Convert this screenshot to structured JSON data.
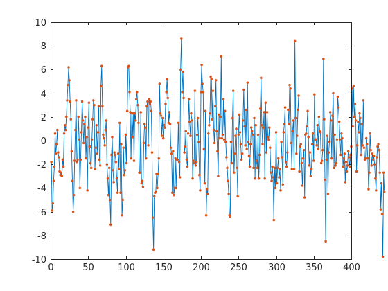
{
  "chart_data": {
    "type": "line",
    "title": "",
    "xlabel": "",
    "ylabel": "",
    "xlim": [
      0,
      400
    ],
    "ylim": [
      -10,
      10
    ],
    "xticks": [
      0,
      50,
      100,
      150,
      200,
      250,
      300,
      350,
      400
    ],
    "yticks": [
      -10,
      -8,
      -6,
      -4,
      -2,
      0,
      2,
      4,
      6,
      8,
      10
    ],
    "grid": false,
    "legend": "none",
    "line_color": "#0072BD",
    "marker_color": "#D95319",
    "marker": "dot",
    "series": [
      {
        "values": [
          -1.8,
          -5.9,
          -5.3,
          -3.4,
          -2.2,
          0.6,
          -1.1,
          -0.3,
          0.9,
          -1.0,
          -1.4,
          -2.6,
          -2.9,
          -2.7,
          -3.0,
          -1.6,
          -2.2,
          0.6,
          1.3,
          0.9,
          2.0,
          3.4,
          4.7,
          6.2,
          5.1,
          3.3,
          1.8,
          -0.9,
          -3.4,
          -6.0,
          -4.6,
          -1.7,
          0.9,
          3.4,
          -1.8,
          -1.6,
          2.0,
          0.1,
          -4.0,
          -1.6,
          0.7,
          3.3,
          1.7,
          -0.2,
          1.4,
          2.0,
          -1.5,
          0.3,
          -4.2,
          1.1,
          3.2,
          -0.5,
          -1.9,
          -2.3,
          0.1,
          1.8,
          3.4,
          3.0,
          -2.4,
          -0.6,
          1.3,
          -1.1,
          0.7,
          2.9,
          -1.6,
          -2.1,
          4.6,
          6.3,
          2.9,
          0.5,
          0.2,
          -0.4,
          0.9,
          1.7,
          -2.0,
          -3.2,
          -4.6,
          -2.3,
          -5.0,
          -7.1,
          -1.2,
          0.3,
          -2.5,
          -3.5,
          -1.0,
          -1.2,
          -1.8,
          -3.2,
          -4.4,
          -1.1,
          -2.4,
          1.5,
          -4.4,
          -0.3,
          -6.3,
          -5.0,
          -0.6,
          -2.9,
          -2.5,
          0.5,
          -1.9,
          2.5,
          6.2,
          6.3,
          4.1,
          2.4,
          -1.5,
          2.3,
          0.3,
          2.3,
          -1.7,
          2.3,
          1.7,
          3.5,
          4.1,
          3.0,
          1.5,
          -2.7,
          -2.7,
          2.4,
          -3.6,
          -3.4,
          -3.9,
          -0.2,
          1.4,
          1.1,
          -1.5,
          2.9,
          3.3,
          -0.4,
          3.5,
          3.1,
          3.3,
          2.5,
          -1.0,
          -6.5,
          -9.2,
          -4.7,
          -4.4,
          -4.3,
          -2.8,
          -4.0,
          -2.8,
          -1.5,
          4.8,
          2.3,
          2.1,
          0.4,
          1.9,
          0.2,
          1.3,
          1.1,
          3.1,
          4.1,
          5.2,
          3.6,
          1.5,
          2.4,
          1.4,
          -0.6,
          -1.1,
          -4.4,
          -0.9,
          -4.6,
          -4.0,
          -1.5,
          -4.0,
          -1.6,
          -1.6,
          1.5,
          -1.8,
          -3.1,
          6.0,
          8.6,
          4.1,
          5.8,
          3.6,
          -1.0,
          -0.5,
          0.8,
          -1.6,
          -2.2,
          0.6,
          3.5,
          1.6,
          0.4,
          2.3,
          1.7,
          -3.2,
          -1.7,
          -1.9,
          4.2,
          -2.1,
          -1.8,
          0.5,
          1.9,
          -0.1,
          -2.9,
          -4.2,
          4.1,
          6.4,
          4.8,
          4.1,
          -0.7,
          -3.6,
          2.5,
          -6.3,
          -4.1,
          -4.5,
          0.6,
          1.3,
          2.3,
          5.4,
          5.2,
          1.8,
          4.2,
          0.9,
          -0.2,
          2.9,
          5.1,
          0.8,
          -0.9,
          -3.0,
          2.2,
          0.2,
          2.0,
          7.1,
          0.2,
          0.5,
          3.5,
          0.1,
          2.5,
          -0.1,
          -1.4,
          -2.3,
          -3.4,
          -4.5,
          -6.3,
          -6.4,
          -0.1,
          -1.9,
          1.9,
          4.2,
          -2.7,
          -1.1,
          0.4,
          1.0,
          -2.3,
          -4.7,
          0.5,
          2.2,
          0.7,
          -0.3,
          -1.6,
          -1.1,
          1.7,
          4.3,
          1.2,
          -0.4,
          2.6,
          -0.7,
          4.9,
          -0.1,
          -1.3,
          -2.2,
          -0.3,
          1.1,
          0.8,
          0.5,
          -2.3,
          1.9,
          -3.2,
          1.3,
          -1.7,
          -2.3,
          0.5,
          -3.2,
          -1.2,
          2.7,
          5.3,
          1.3,
          -0.3,
          1.1,
          2.4,
          -3.2,
          3.2,
          -1.0,
          2.4,
          0.3,
          0.1,
          1.1,
          -0.6,
          -2.7,
          -3.4,
          -2.2,
          -3.1,
          -6.7,
          -2.3,
          -4.0,
          0.7,
          -3.6,
          -2.3,
          -1.5,
          -3.1,
          -2.4,
          -4.2,
          -0.1,
          -1.4,
          -3.7,
          0.7,
          1.4,
          2.8,
          -1.8,
          -2.2,
          -1.0,
          2.6,
          1.4,
          4.7,
          4.4,
          -0.2,
          -2.4,
          0.8,
          1.7,
          -2.4,
          8.4,
          1.9,
          -1.1,
          0.4,
          2.6,
          3.8,
          -2.6,
          -0.5,
          -0.3,
          -1.9,
          -3.8,
          -1.5,
          -0.8,
          -4.8,
          0.5,
          0.6,
          1.2,
          2.5,
          0.3,
          -2.1,
          -1.0,
          -3.0,
          -2.4,
          -0.3,
          0.6,
          -1.7,
          3.9,
          0.1,
          0.1,
          -0.4,
          1.3,
          -0.7,
          2.0,
          0.8,
          0.7,
          -1.9,
          -1.7,
          -0.8,
          6.9,
          1.8,
          -3.3,
          -8.5,
          -1.6,
          0.4,
          -4.5,
          -1.0,
          -0.1,
          2.4,
          1.7,
          -1.5,
          2.1,
          4.0,
          -2.3,
          0.5,
          -2.1,
          -1.9,
          0.1,
          3.7,
          2.8,
          1.6,
          0.1,
          -1.2,
          0.6,
          0.2,
          -2.2,
          -1.5,
          -1.1,
          -3.5,
          -1.8,
          -2.6,
          -2.1,
          -0.9,
          -1.4,
          -2.2,
          -1.2,
          -0.5,
          4.4,
          1.2,
          4.6,
          2.0,
          3.1,
          1.7,
          -2.6,
          -0.4,
          1.6,
          0.7,
          2.3,
          1.9,
          -1.2,
          1.4,
          -0.4,
          3.4,
          -0.6,
          -1.6,
          -1.5,
          0.2,
          -0.3,
          -1.5,
          -4.1,
          -2.7,
          0.6,
          -0.8,
          -2.1,
          -1.1,
          -1.6,
          -1.3,
          -2.0,
          -3.2,
          -4.2,
          -1.4,
          -0.5,
          -0.3,
          -0.8,
          -2.7,
          -5.8,
          -3.6,
          -6.2,
          -9.8,
          -2.7,
          -4.3
        ]
      }
    ]
  }
}
